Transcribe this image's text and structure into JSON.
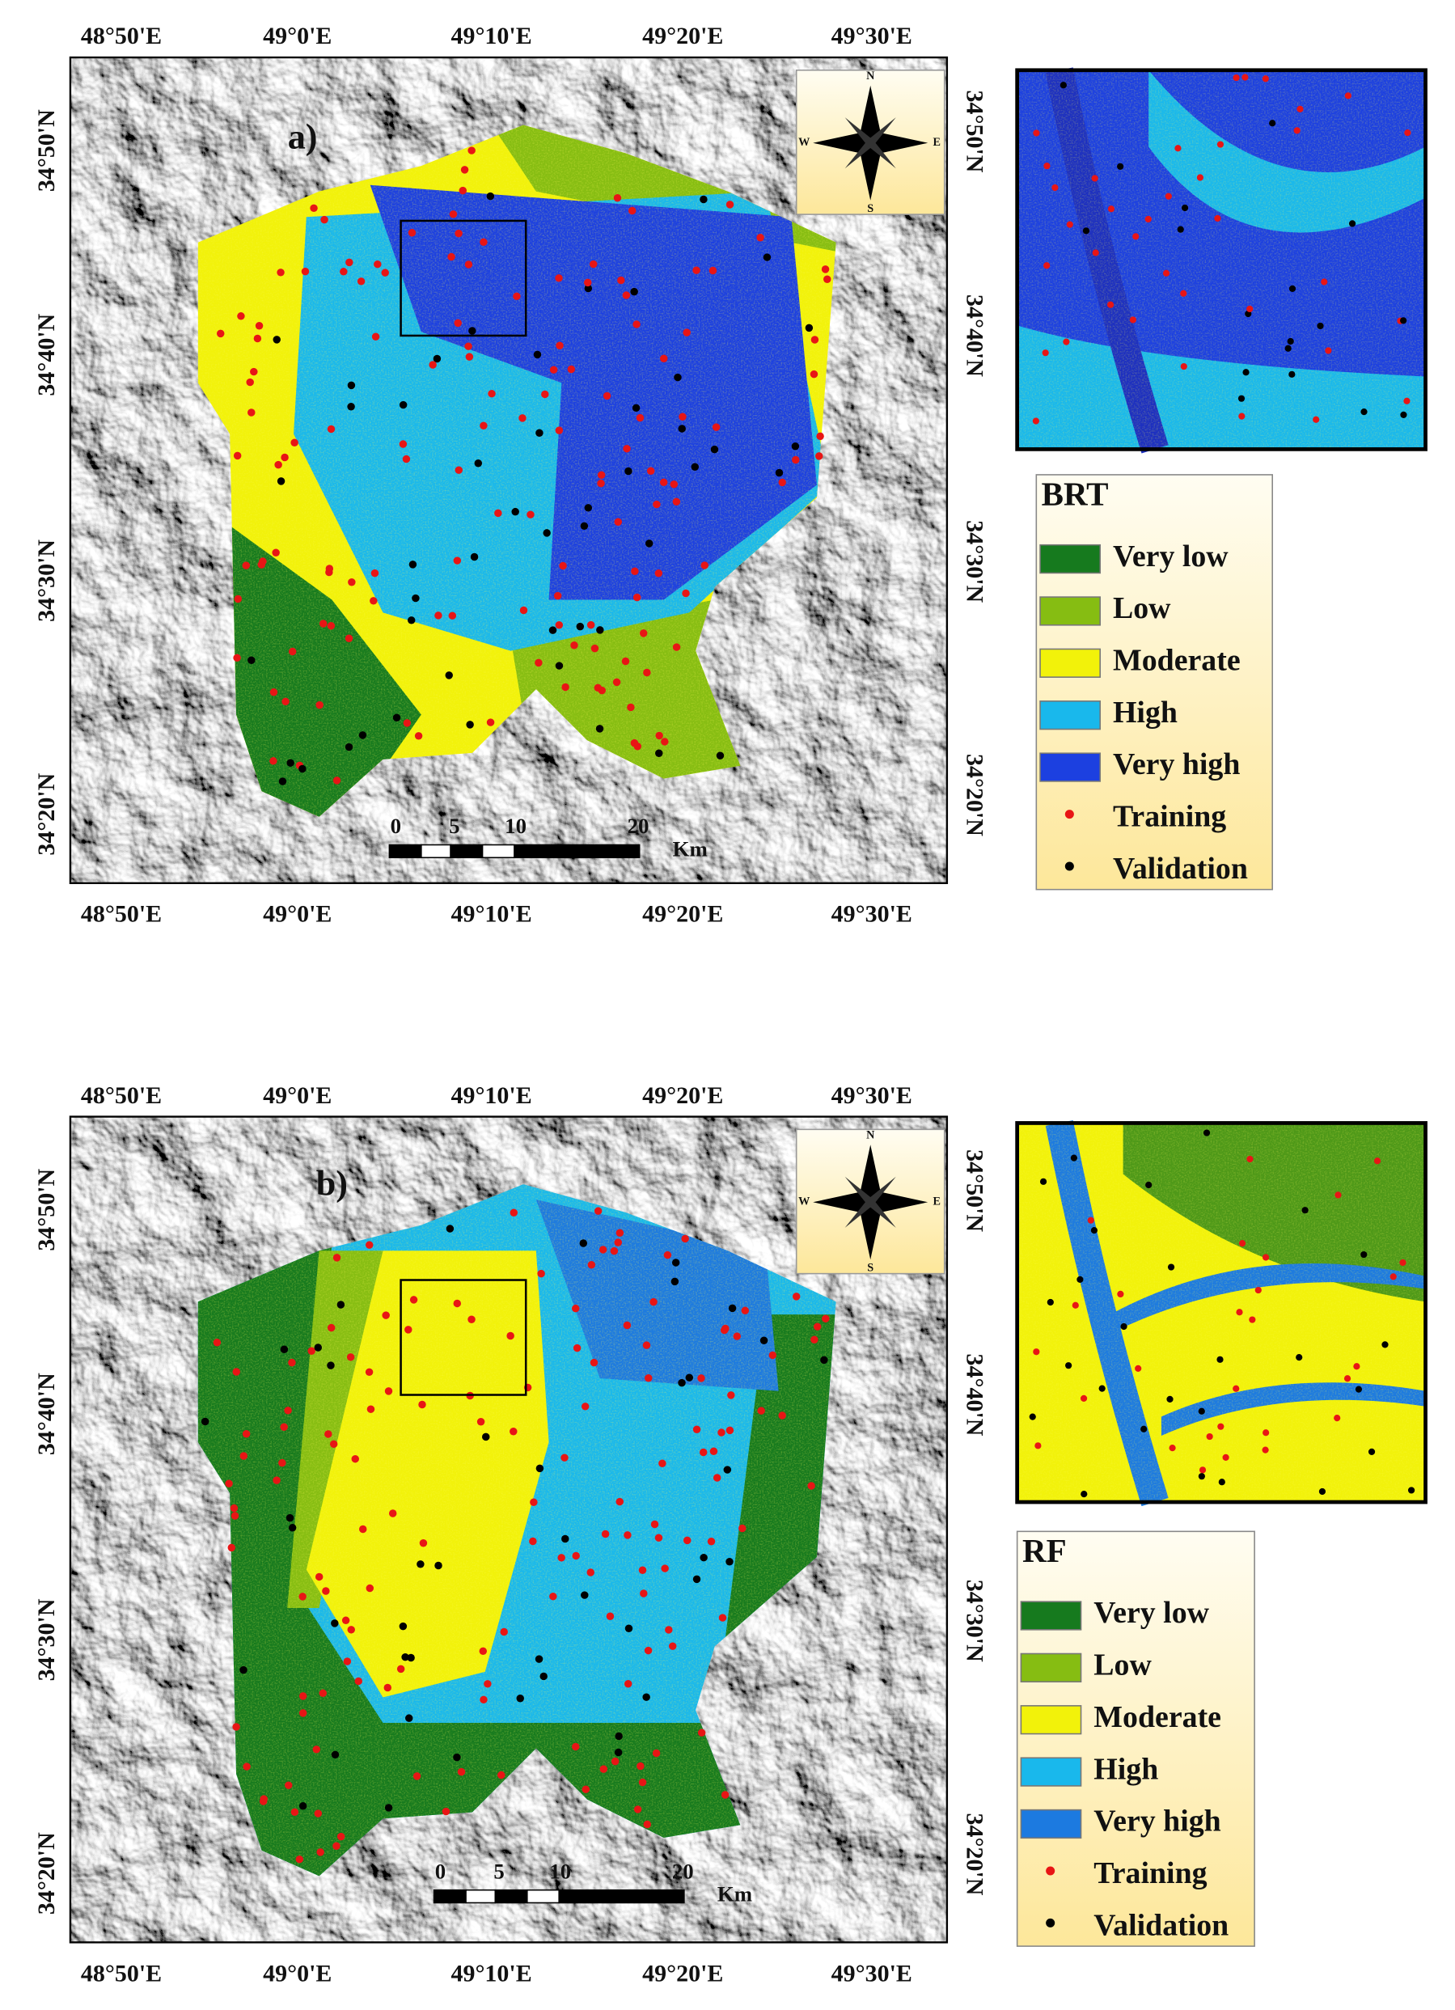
{
  "panels": [
    {
      "label": "a)",
      "top_ticks": [
        "48°50'E",
        "49°0'E",
        "49°10'E",
        "49°20'E",
        "49°30'E"
      ],
      "bottom_ticks": [
        "48°50'E",
        "49°0'E",
        "49°10'E",
        "49°20'E",
        "49°30'E"
      ],
      "left_ticks": [
        "34°50'N",
        "34°40'N",
        "34°30'N",
        "34°20'N"
      ],
      "right_ticks": [
        "34°50'N",
        "34°40'N",
        "34°30'N",
        "34°20'N"
      ],
      "compass": [
        "N",
        "E",
        "S",
        "W"
      ],
      "scale": [
        "0",
        "5",
        "10",
        "20",
        "Km"
      ],
      "legend": {
        "title": "BRT",
        "items": [
          {
            "label": "Very low",
            "color": "#167a1e"
          },
          {
            "label": "Low",
            "color": "#86bd12"
          },
          {
            "label": "Moderate",
            "color": "#f2f20a"
          },
          {
            "label": "High",
            "color": "#19b8ec"
          },
          {
            "label": "Very high",
            "color": "#1c40e0"
          },
          {
            "label": "Training",
            "color": "#e81515"
          },
          {
            "label": "Validation",
            "color": "#000000"
          }
        ]
      }
    },
    {
      "label": "b)",
      "top_ticks": [
        "48°50'E",
        "49°0'E",
        "49°10'E",
        "49°20'E",
        "49°30'E"
      ],
      "bottom_ticks": [
        "48°50'E",
        "49°0'E",
        "49°10'E",
        "49°20'E",
        "49°30'E"
      ],
      "left_ticks": [
        "34°50'N",
        "34°40'N",
        "34°30'N",
        "34°20'N"
      ],
      "right_ticks": [
        "34°50'N",
        "34°40'N",
        "34°30'N",
        "34°20'N"
      ],
      "compass": [
        "N",
        "E",
        "S",
        "W"
      ],
      "scale": [
        "0",
        "5",
        "10",
        "20",
        "Km"
      ],
      "legend": {
        "title": "RF",
        "items": [
          {
            "label": "Very low",
            "color": "#167a1e"
          },
          {
            "label": "Low",
            "color": "#86bd12"
          },
          {
            "label": "Moderate",
            "color": "#f2f20a"
          },
          {
            "label": "High",
            "color": "#19b8ec"
          },
          {
            "label": "Very high",
            "color": "#1c7ae0"
          },
          {
            "label": "Training",
            "color": "#e81515"
          },
          {
            "label": "Validation",
            "color": "#000000"
          }
        ]
      }
    }
  ]
}
